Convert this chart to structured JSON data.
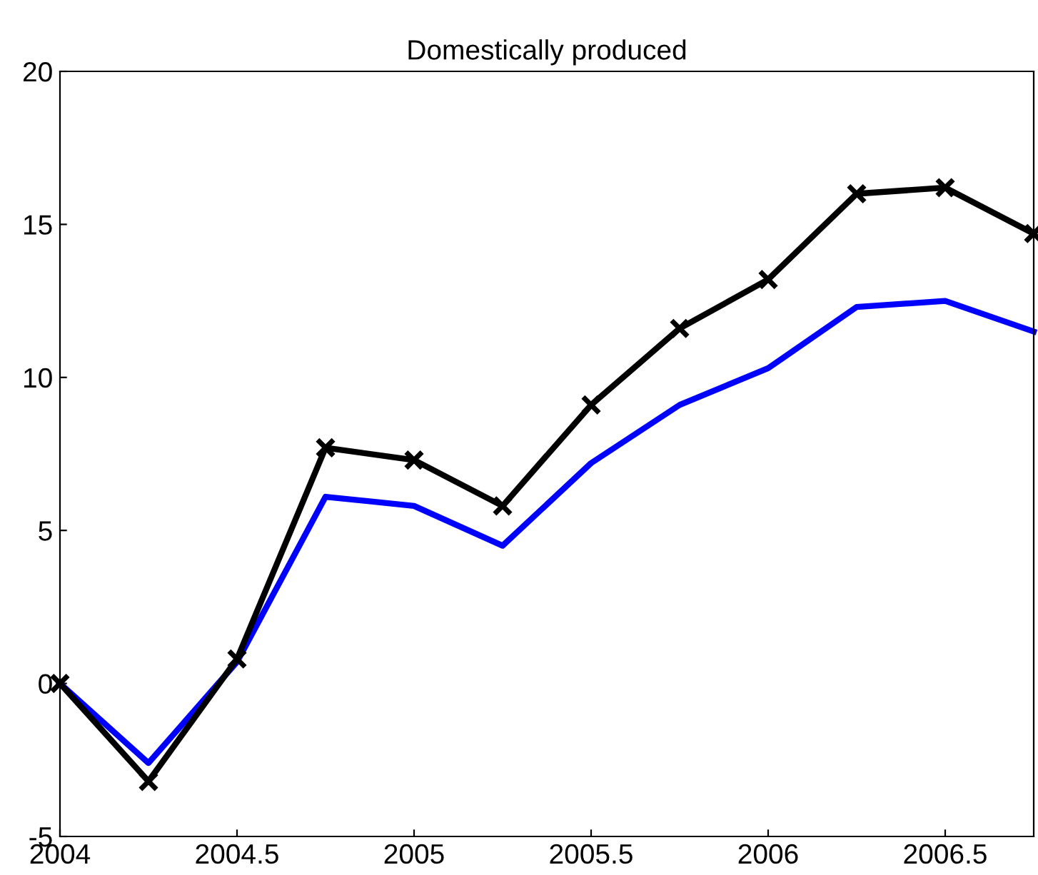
{
  "chart_data": {
    "type": "line",
    "title": "Domestically produced",
    "x": [
      2004,
      2004.25,
      2004.5,
      2004.75,
      2005,
      2005.25,
      2005.5,
      2005.75,
      2006,
      2006.25,
      2006.5,
      2006.75
    ],
    "series": [
      {
        "color": "#0000ff",
        "marker": "none",
        "values": [
          0,
          -2.6,
          0.7,
          6.1,
          5.8,
          4.5,
          7.2,
          9.1,
          10.3,
          12.3,
          12.5,
          11.5
        ]
      },
      {
        "color": "#000000",
        "marker": "cross",
        "values": [
          0,
          -3.2,
          0.8,
          7.7,
          7.3,
          5.8,
          9.1,
          11.6,
          13.2,
          16.0,
          16.2,
          14.7
        ]
      }
    ],
    "xlim": [
      2004,
      2006.75
    ],
    "xticks": [
      2004,
      2004.5,
      2005,
      2005.5,
      2006,
      2006.5
    ],
    "ylim": [
      -5,
      20
    ],
    "yticks": [
      -5,
      0,
      5,
      10,
      15,
      20
    ],
    "grid": false,
    "legend": false,
    "line_style": "solid"
  }
}
